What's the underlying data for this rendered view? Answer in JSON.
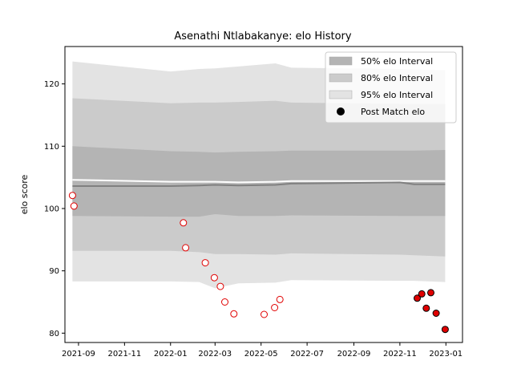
{
  "chart_data": {
    "type": "line",
    "title": "Asenathi Ntlabakanye: elo History",
    "xlabel": "",
    "ylabel": "elo score",
    "x_tick_labels": [
      "2021-09",
      "2021-11",
      "2022-01",
      "2022-03",
      "2022-05",
      "2022-07",
      "2022-09",
      "2022-11",
      "2023-01"
    ],
    "x_ticks": [
      "2021-09-01",
      "2021-11-01",
      "2022-01-01",
      "2022-03-01",
      "2022-05-01",
      "2022-07-01",
      "2022-09-01",
      "2022-11-01",
      "2023-01-01"
    ],
    "xlim": [
      "2021-08-14",
      "2023-01-23"
    ],
    "y_ticks": [
      80,
      90,
      100,
      110,
      120
    ],
    "ylim": [
      78.5,
      126
    ],
    "grid": false,
    "legend_position": "upper right",
    "colors": {
      "band95": "#e3e3e3",
      "band80": "#cbcbcb",
      "band50": "#b4b4b4",
      "mean_line": "#808080",
      "mode_line": "#ffffff",
      "marker_face_pre": "#ffffff",
      "marker_edge_pre": "#e00000",
      "marker_face_post": "#e00000",
      "marker_edge_post": "#000000"
    },
    "bands": {
      "x": [
        "2021-08-24",
        "2022-01-01",
        "2022-02-08",
        "2022-03-01",
        "2022-04-01",
        "2022-05-20",
        "2022-06-10",
        "2022-11-01",
        "2022-11-20",
        "2022-12-31"
      ],
      "p95_upper": [
        123.6,
        122.0,
        122.4,
        122.5,
        122.8,
        123.3,
        122.6,
        122.4,
        122.3,
        122.2
      ],
      "p80_upper": [
        117.7,
        116.9,
        117.0,
        117.0,
        117.1,
        117.3,
        117.0,
        116.8,
        116.8,
        116.8
      ],
      "p50_upper": [
        110.0,
        109.2,
        109.1,
        109.0,
        109.1,
        109.2,
        109.3,
        109.3,
        109.3,
        109.4
      ],
      "p50_lower": [
        98.8,
        98.7,
        98.7,
        99.1,
        98.8,
        98.8,
        98.9,
        98.8,
        98.8,
        98.8
      ],
      "p80_lower": [
        93.2,
        93.2,
        93.0,
        92.7,
        92.7,
        92.6,
        92.8,
        92.6,
        92.5,
        92.3
      ],
      "p95_lower": [
        88.3,
        88.3,
        88.2,
        87.2,
        88.0,
        88.1,
        88.5,
        88.4,
        88.4,
        88.2
      ],
      "mean": [
        103.6,
        103.6,
        103.7,
        103.8,
        103.7,
        103.8,
        104.0,
        104.2,
        103.9,
        103.9
      ],
      "mode": [
        104.6,
        104.3,
        104.3,
        104.3,
        104.2,
        104.3,
        104.4,
        104.4,
        104.4,
        104.4
      ]
    },
    "series": [
      {
        "name": "Post Match elo",
        "points": [
          {
            "x": "2021-08-24",
            "y": 102.1,
            "status": "pre"
          },
          {
            "x": "2021-08-26",
            "y": 100.4,
            "status": "pre"
          },
          {
            "x": "2022-01-18",
            "y": 97.7,
            "status": "pre"
          },
          {
            "x": "2022-01-21",
            "y": 93.7,
            "status": "pre"
          },
          {
            "x": "2022-02-16",
            "y": 91.3,
            "status": "pre"
          },
          {
            "x": "2022-02-28",
            "y": 88.9,
            "status": "pre"
          },
          {
            "x": "2022-03-08",
            "y": 87.5,
            "status": "pre"
          },
          {
            "x": "2022-03-14",
            "y": 85.0,
            "status": "pre"
          },
          {
            "x": "2022-03-26",
            "y": 83.1,
            "status": "pre"
          },
          {
            "x": "2022-05-05",
            "y": 83.0,
            "status": "pre"
          },
          {
            "x": "2022-05-19",
            "y": 84.1,
            "status": "pre"
          },
          {
            "x": "2022-05-26",
            "y": 85.4,
            "status": "pre"
          },
          {
            "x": "2022-11-24",
            "y": 85.6,
            "status": "post"
          },
          {
            "x": "2022-11-30",
            "y": 86.3,
            "status": "post"
          },
          {
            "x": "2022-12-06",
            "y": 84.0,
            "status": "post"
          },
          {
            "x": "2022-12-12",
            "y": 86.5,
            "status": "post"
          },
          {
            "x": "2022-12-19",
            "y": 83.2,
            "status": "post"
          },
          {
            "x": "2022-12-31",
            "y": 80.6,
            "status": "post"
          }
        ]
      }
    ],
    "legend": [
      {
        "key": "band50",
        "label": "50% elo Interval"
      },
      {
        "key": "band80",
        "label": "80% elo Interval"
      },
      {
        "key": "band95",
        "label": "95% elo Interval"
      },
      {
        "key": "marker",
        "label": "Post Match elo"
      }
    ]
  }
}
